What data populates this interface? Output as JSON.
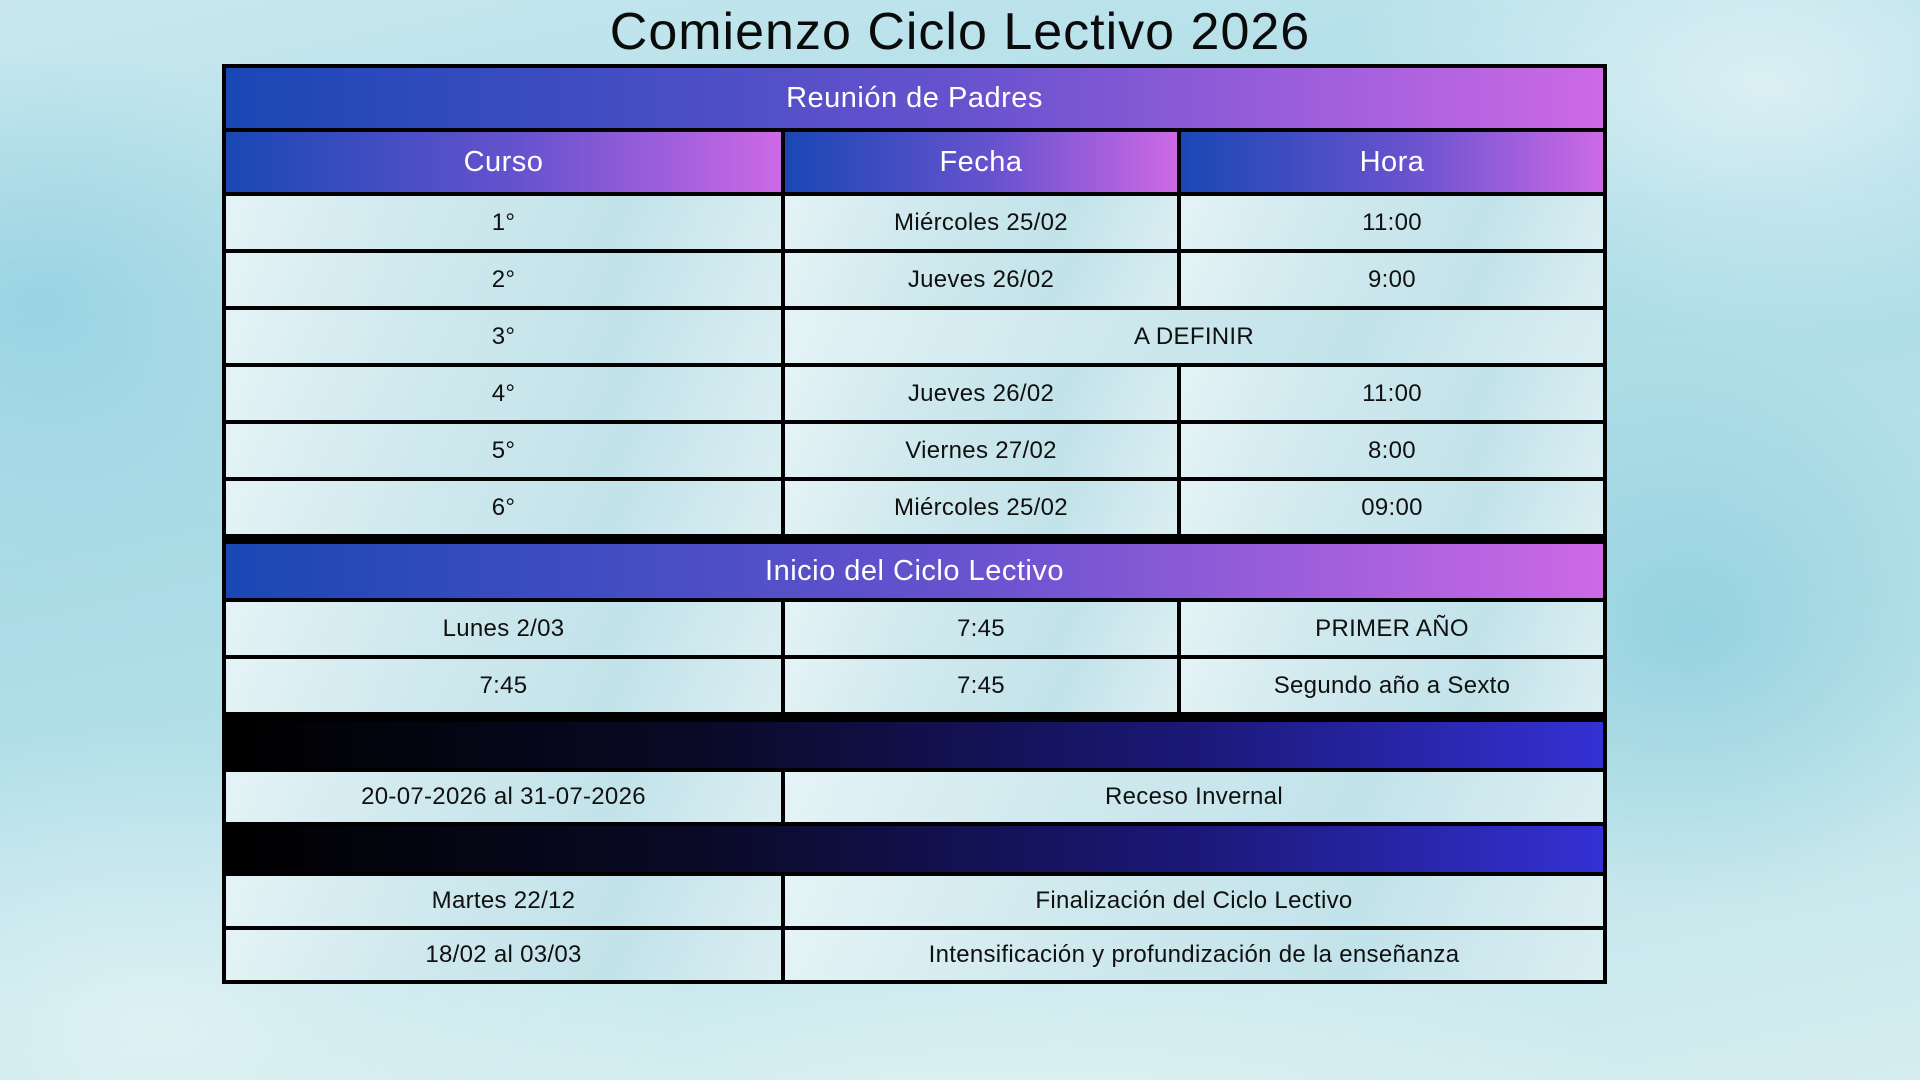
{
  "title": "Comienzo Ciclo Lectivo 2026",
  "colors": {
    "grad-start": "#1a47b5",
    "grad-end": "#cd69e6",
    "dark-start": "#000000",
    "dark-end": "#3431d4",
    "cell-bg": "#cfe9ee",
    "border": "#000000",
    "header-text": "#ffffff",
    "body-text": "#101010",
    "background": "#b5dde7"
  },
  "parents": {
    "header": "Reunión de Padres",
    "columns": {
      "curso": "Curso",
      "fecha": "Fecha",
      "hora": "Hora"
    },
    "rows": [
      {
        "curso": "1°",
        "fecha": "Miércoles 25/02",
        "hora": "11:00"
      },
      {
        "curso": "2°",
        "fecha": "Jueves 26/02",
        "hora": "9:00"
      },
      {
        "curso": "3°",
        "fecha_hora": "A DEFINIR"
      },
      {
        "curso": "4°",
        "fecha": "Jueves 26/02",
        "hora": "11:00"
      },
      {
        "curso": "5°",
        "fecha": "Viernes 27/02",
        "hora": "8:00"
      },
      {
        "curso": "6°",
        "fecha": "Miércoles 25/02",
        "hora": "09:00"
      }
    ]
  },
  "inicio": {
    "header": "Inicio del Ciclo Lectivo",
    "rows": [
      {
        "c1": "Lunes 2/03",
        "c2": "7:45",
        "c3": "PRIMER AÑO"
      },
      {
        "c1": "7:45",
        "c2": "7:45",
        "c3": "Segundo año a Sexto"
      }
    ]
  },
  "calendario": {
    "rows": [
      {
        "left": "20-07-2026 al 31-07-2026",
        "right": "Receso Invernal"
      },
      {
        "left": "Martes 22/12",
        "right": "Finalización del Ciclo Lectivo"
      },
      {
        "left": "18/02 al 03/03",
        "right": "Intensificación y profundización de la enseñanza"
      }
    ]
  }
}
